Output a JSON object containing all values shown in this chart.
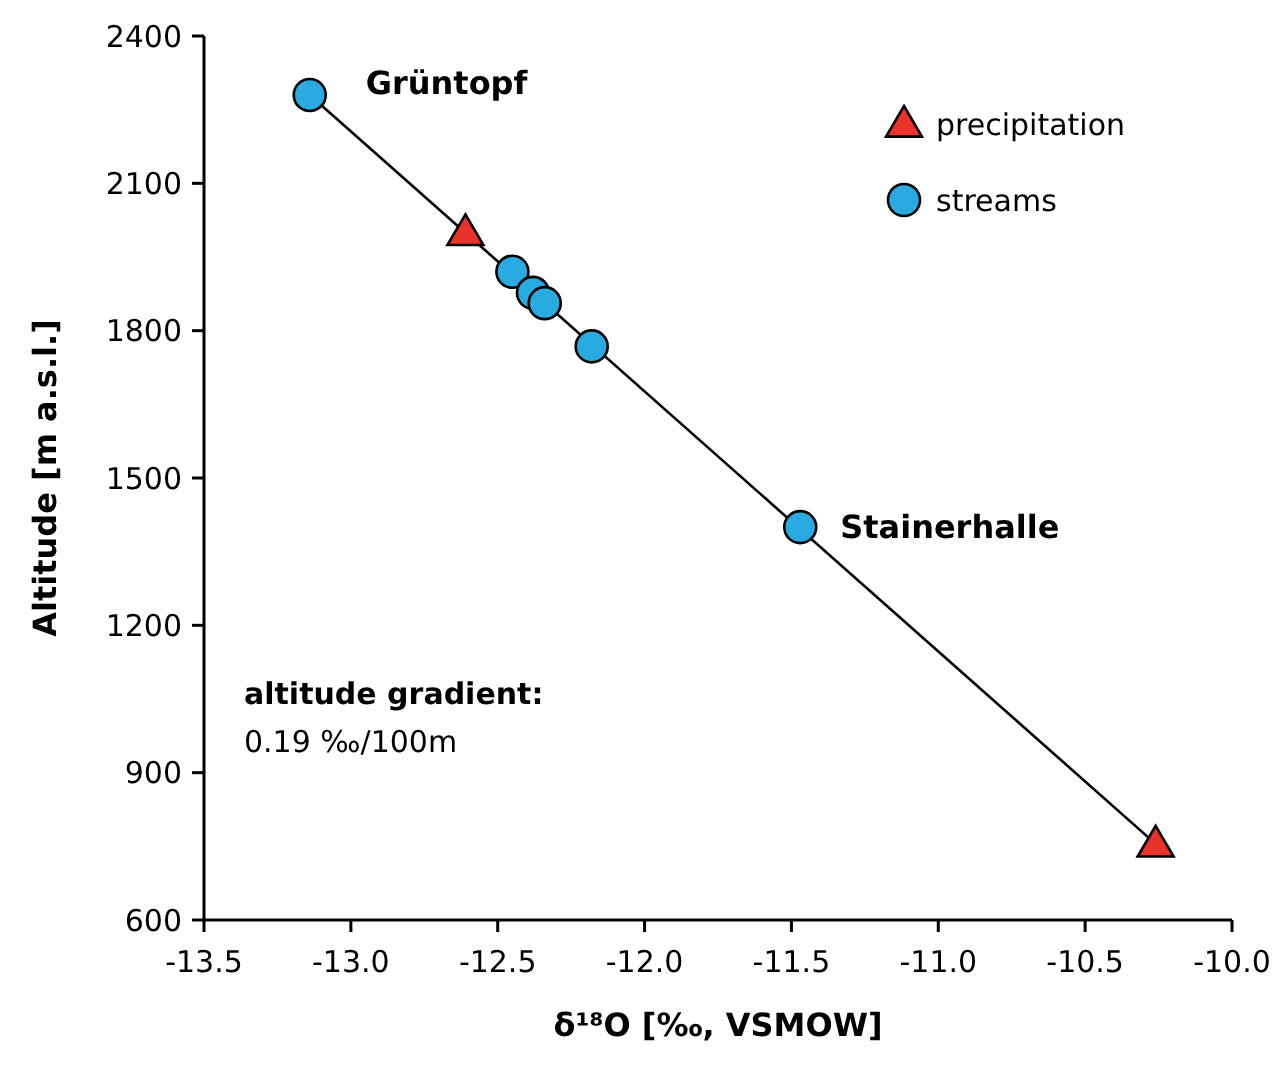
{
  "chart_data": {
    "type": "scatter",
    "xlabel": "δ¹⁸O [‰, VSMOW]",
    "ylabel": "Altitude [m a.s.l.]",
    "xlim": [
      -13.5,
      -10.0
    ],
    "xticks": [
      {
        "value": -13.5,
        "label": "-13.5"
      },
      {
        "value": -13.0,
        "label": "-13.0"
      },
      {
        "value": -12.5,
        "label": "-12.5"
      },
      {
        "value": -12.0,
        "label": "-12.0"
      },
      {
        "value": -11.5,
        "label": "-11.5"
      },
      {
        "value": -11.0,
        "label": "-11.0"
      },
      {
        "value": -10.5,
        "label": "-10.5"
      },
      {
        "value": -10.0,
        "label": "-10.0"
      }
    ],
    "ylim": [
      600,
      2400
    ],
    "yticks": [
      600,
      900,
      1200,
      1500,
      1800,
      2100,
      2400
    ],
    "grid": false,
    "legend": "top right",
    "series": [
      {
        "type": "line",
        "color": "#000000",
        "marker": "none",
        "line_style": "solid",
        "x": [
          -13.14,
          -10.26
        ],
        "values": [
          2280,
          755
        ]
      },
      {
        "name": "precipitation",
        "color": "#e8322b",
        "marker": "triangle",
        "x": [
          -12.61,
          -10.26
        ],
        "values": [
          2000,
          755
        ]
      },
      {
        "name": "streams",
        "color": "#29abe2",
        "marker": "circle",
        "x": [
          -13.14,
          -12.45,
          -12.38,
          -12.34,
          -12.18,
          -11.47
        ],
        "values": [
          2280,
          1920,
          1877,
          1856,
          1768,
          1400
        ]
      }
    ],
    "annotations": [
      {
        "text": "Grüntopf",
        "x": -13.14,
        "y": 2280
      },
      {
        "text": "Stainerhalle",
        "x": -11.47,
        "y": 1400
      },
      "altitude gradient:",
      "0.19 ‰/100m"
    ]
  }
}
